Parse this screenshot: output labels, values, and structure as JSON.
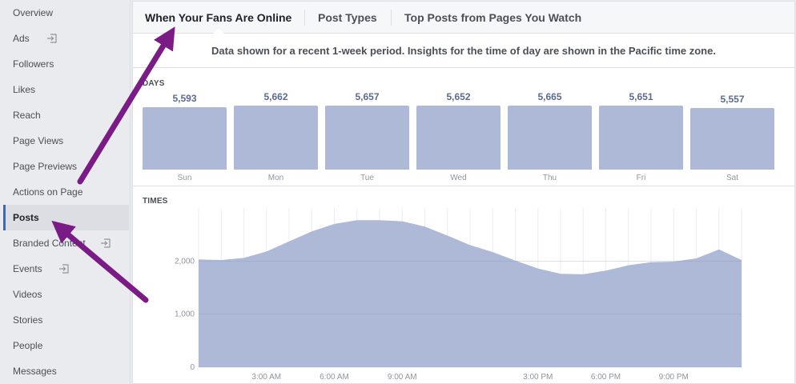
{
  "sidebar": {
    "items": [
      {
        "label": "Overview",
        "name": "sidebar-item-overview",
        "ext": false
      },
      {
        "label": "Ads",
        "name": "sidebar-item-ads",
        "ext": true
      },
      {
        "label": "Followers",
        "name": "sidebar-item-followers",
        "ext": false
      },
      {
        "label": "Likes",
        "name": "sidebar-item-likes",
        "ext": false
      },
      {
        "label": "Reach",
        "name": "sidebar-item-reach",
        "ext": false
      },
      {
        "label": "Page Views",
        "name": "sidebar-item-page-views",
        "ext": false
      },
      {
        "label": "Page Previews",
        "name": "sidebar-item-page-previews",
        "ext": false
      },
      {
        "label": "Actions on Page",
        "name": "sidebar-item-actions-on-page",
        "ext": false
      },
      {
        "label": "Posts",
        "name": "sidebar-item-posts",
        "ext": false,
        "active": true
      },
      {
        "label": "Branded Content",
        "name": "sidebar-item-branded-content",
        "ext": true
      },
      {
        "label": "Events",
        "name": "sidebar-item-events",
        "ext": true
      },
      {
        "label": "Videos",
        "name": "sidebar-item-videos",
        "ext": false
      },
      {
        "label": "Stories",
        "name": "sidebar-item-stories",
        "ext": false
      },
      {
        "label": "People",
        "name": "sidebar-item-people",
        "ext": false
      },
      {
        "label": "Messages",
        "name": "sidebar-item-messages",
        "ext": false
      }
    ]
  },
  "tabs": [
    {
      "label": "When Your Fans Are Online",
      "active": true
    },
    {
      "label": "Post Types",
      "active": false
    },
    {
      "label": "Top Posts from Pages You Watch",
      "active": false
    }
  ],
  "info_text": "Data shown for a recent 1-week period. Insights for the time of day are shown in the Pacific time zone.",
  "colors": {
    "bar": "#adb9d6",
    "area": "#adb9d6",
    "arrow": "#7a1b86",
    "accent": "#4267b2"
  },
  "icons": {
    "external": "external-link-icon"
  },
  "chart_data": [
    {
      "type": "bar",
      "title": "DAYS",
      "categories": [
        "Sun",
        "Mon",
        "Tue",
        "Wed",
        "Thu",
        "Fri",
        "Sat"
      ],
      "values": [
        5593,
        5662,
        5657,
        5652,
        5665,
        5651,
        5557
      ],
      "value_labels": [
        "5,593",
        "5,662",
        "5,657",
        "5,652",
        "5,665",
        "5,651",
        "5,557"
      ]
    },
    {
      "type": "area",
      "title": "TIMES",
      "ylim": [
        0,
        3000
      ],
      "yticks": [
        0,
        1000,
        2000
      ],
      "ytick_labels": [
        "0",
        "1,000",
        "2,000"
      ],
      "xticks": [
        {
          "hour": 3,
          "label": "3:00 AM"
        },
        {
          "hour": 6,
          "label": "6:00 AM"
        },
        {
          "hour": 9,
          "label": "9:00 AM"
        },
        {
          "hour": 15,
          "label": "3:00 PM"
        },
        {
          "hour": 18,
          "label": "6:00 PM"
        },
        {
          "hour": 21,
          "label": "9:00 PM"
        }
      ],
      "hours": [
        0,
        1,
        2,
        3,
        4,
        5,
        6,
        7,
        8,
        9,
        10,
        11,
        12,
        13,
        14,
        15,
        16,
        17,
        18,
        19,
        20,
        21,
        22,
        23,
        24
      ],
      "values": [
        2030,
        2020,
        2060,
        2180,
        2370,
        2560,
        2700,
        2770,
        2770,
        2750,
        2650,
        2480,
        2300,
        2170,
        2010,
        1860,
        1760,
        1750,
        1820,
        1920,
        1980,
        1990,
        2050,
        2220,
        2020
      ]
    }
  ]
}
